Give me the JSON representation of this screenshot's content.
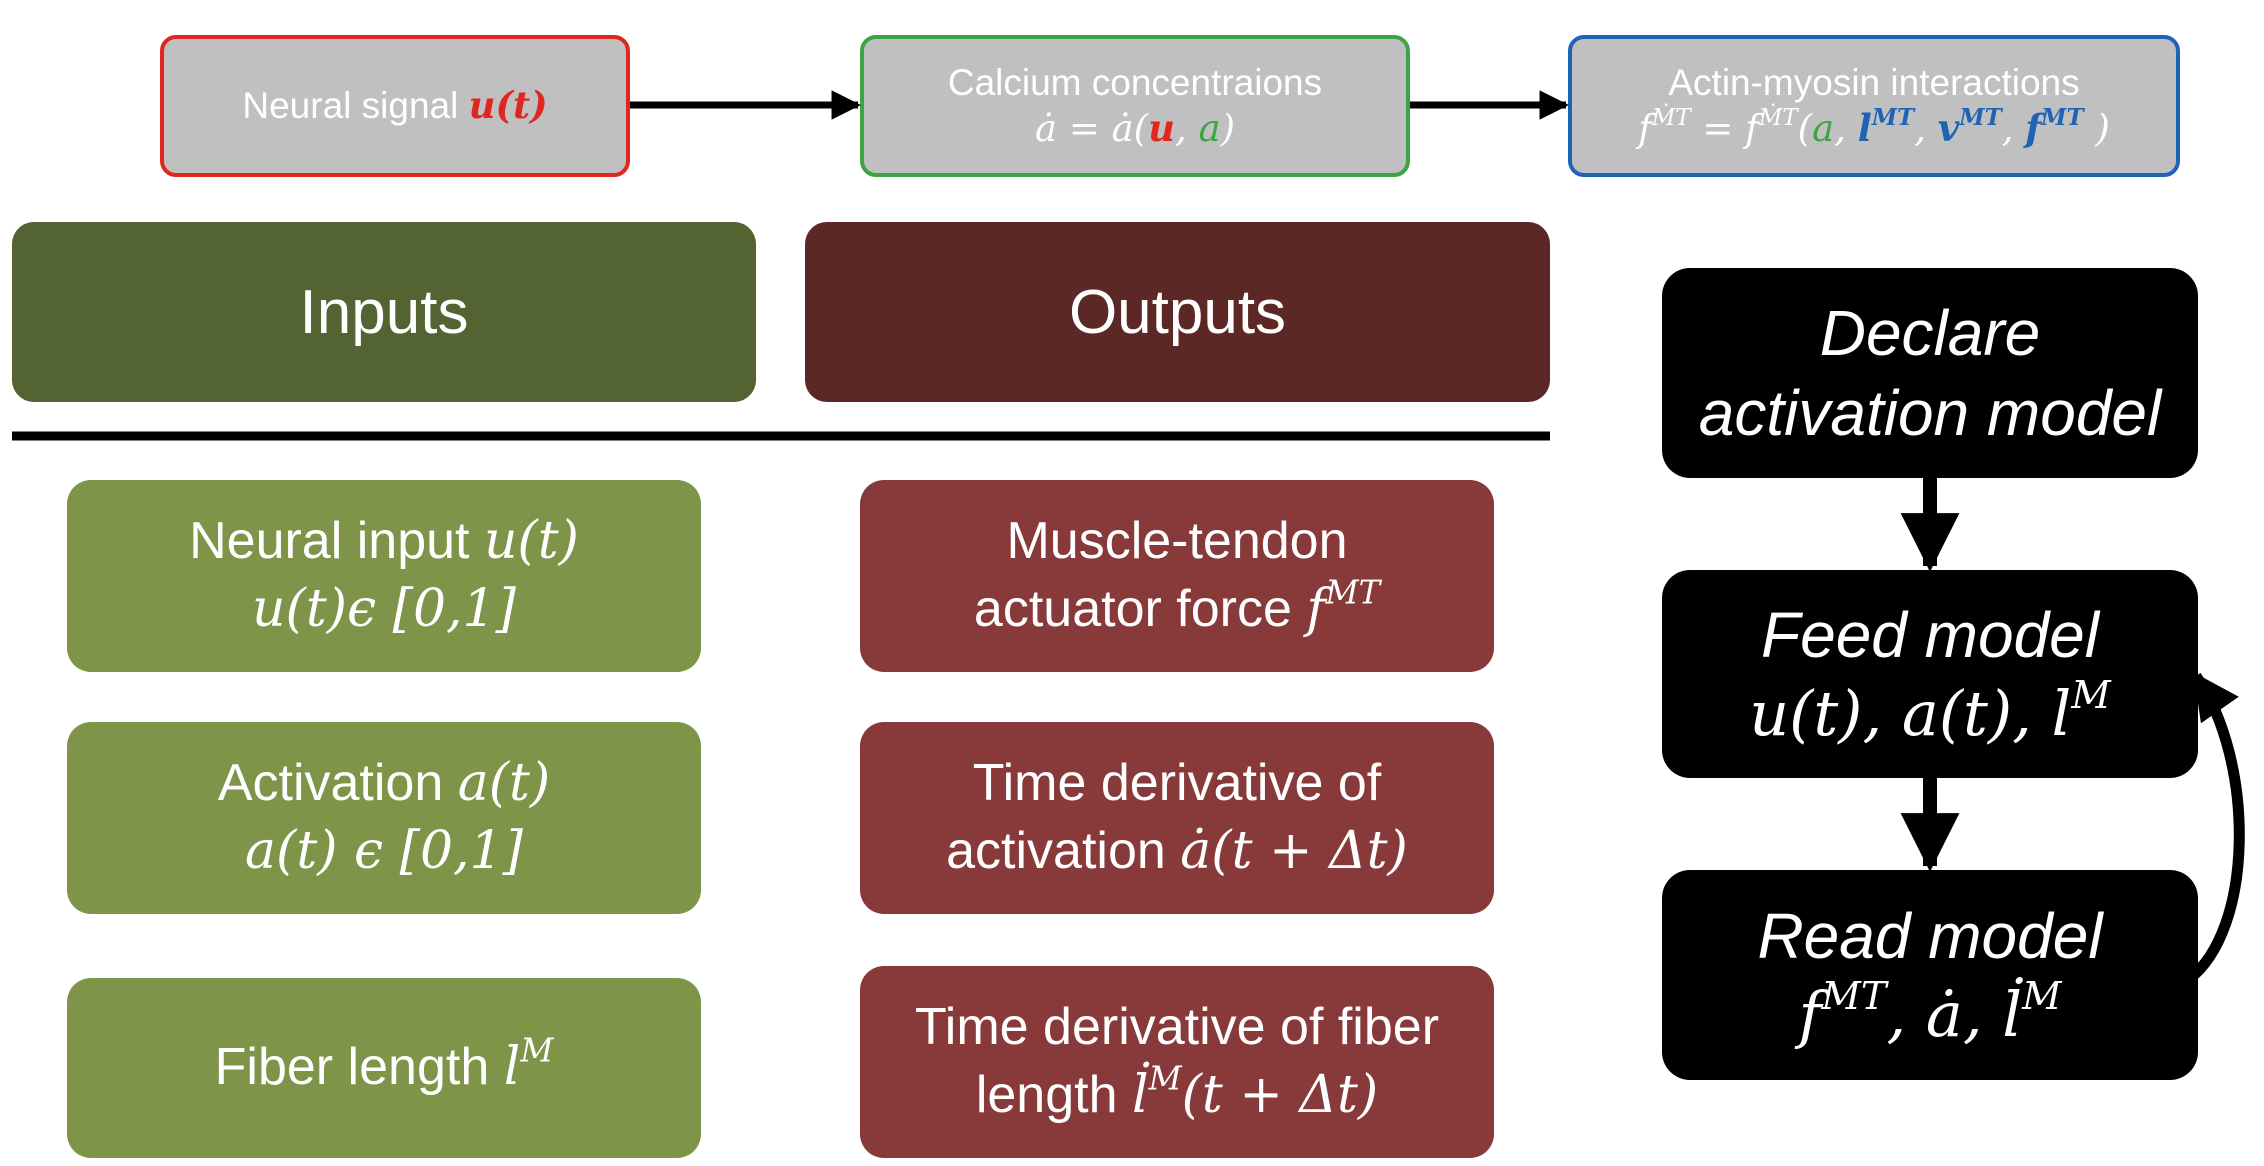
{
  "top_row": {
    "neural": {
      "text": "Neural signal ",
      "var": "u(t)"
    },
    "calcium": {
      "line1": "Calcium concentraions",
      "lhs": "ȧ = ȧ(",
      "u": "u",
      "sep": ", ",
      "a": "a",
      "close": ")"
    },
    "actin": {
      "line1": "Actin-myosin interactions",
      "lhs": "f",
      "lhs_sup": "ṀT",
      "eq": " = f",
      "eq_sup": "ṀT",
      "open": "(",
      "a": "a",
      "c1": ", ",
      "l": "l",
      "l_sup": "MT",
      "c2": ", ",
      "v": "v",
      "v_sup": "MT",
      "c3": ", ",
      "f": "f",
      "f_sup": "MT",
      "close": " )"
    },
    "colors": {
      "red": "#e0271f",
      "green": "#3fa346",
      "blue": "#1f63b6"
    }
  },
  "headers": {
    "inputs": "Inputs",
    "outputs": "Outputs",
    "inputs_color": "#536332",
    "outputs_color": "#5c2826"
  },
  "inputs": [
    {
      "line1_text": "Neural input ",
      "line1_math": "u(t)",
      "line2": "u(t)ϵ [0,1]"
    },
    {
      "line1_text": "Activation ",
      "line1_math": "a(t)",
      "line2": "a(t) ϵ [0,1]"
    },
    {
      "line1_text": "Fiber length ",
      "line1_math": "l",
      "line1_sup": "M"
    }
  ],
  "outputs": [
    {
      "line1": "Muscle-tendon",
      "line2_text": "actuator force ",
      "line2_math": "f",
      "line2_sup": "MT"
    },
    {
      "line1": "Time derivative of",
      "line2_text": "activation ",
      "line2_math": "ȧ(t + Δt)"
    },
    {
      "line1": "Time derivative of fiber",
      "line2_text": "length ",
      "line2_math": "l̇",
      "line2_sup": "M",
      "line2_tail": "(t + Δt)"
    }
  ],
  "flow": {
    "declare_line1": "Declare",
    "declare_line2": "activation model",
    "feed_title": "Feed model",
    "feed_math": "u(t), a(t), l",
    "feed_sup": "M",
    "read_title": "Read model",
    "read_math1": "f",
    "read_sup1": "MT",
    "read_math2": ", ȧ, l̇",
    "read_sup2": "M"
  }
}
